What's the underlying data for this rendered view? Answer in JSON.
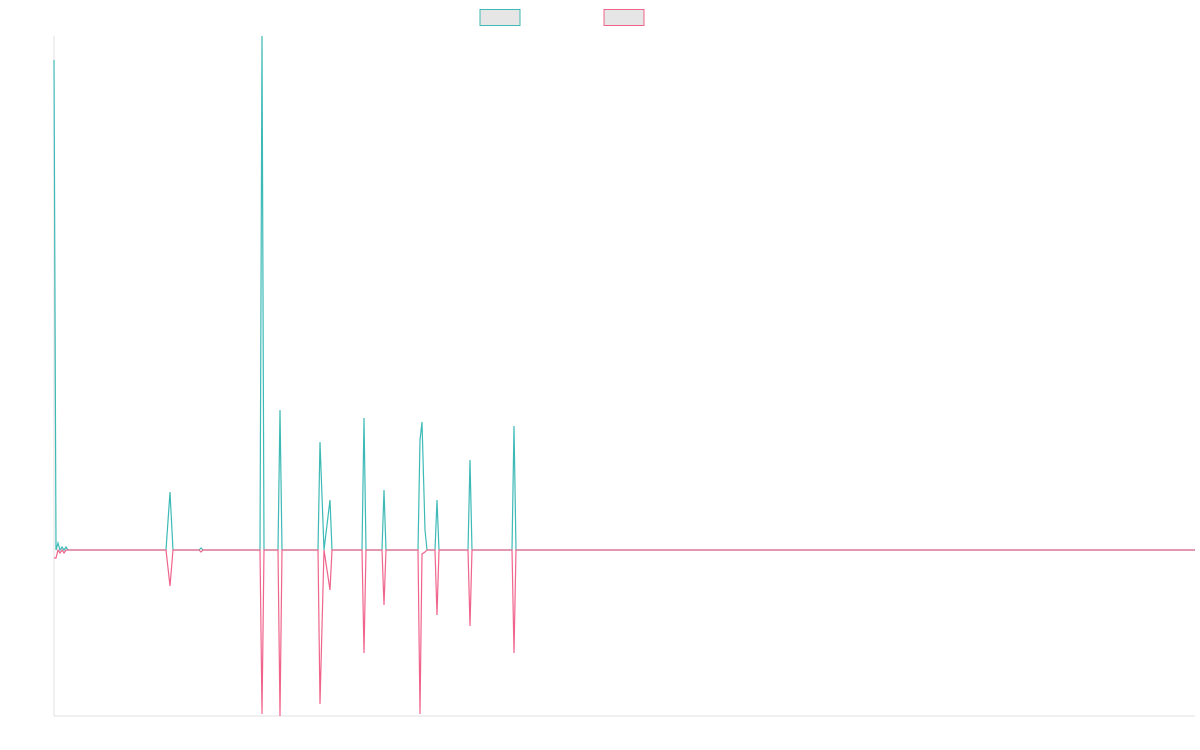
{
  "chart_data": {
    "type": "line",
    "x": [
      0,
      2,
      4,
      6,
      8,
      10,
      12,
      14,
      16,
      112,
      116,
      119,
      145,
      147,
      149,
      206,
      208,
      210,
      224,
      226,
      228,
      264,
      266,
      270,
      276,
      278,
      308,
      310,
      312,
      328,
      330,
      332,
      364,
      366,
      368,
      371,
      373,
      381,
      383,
      385,
      414,
      416,
      418,
      458,
      460,
      462,
      1141
    ],
    "series": [
      {
        "color": "#3dbab6",
        "values": [
          490,
          0,
          7,
          0,
          3,
          0,
          3,
          0,
          0,
          0,
          58,
          0,
          0,
          2,
          0,
          0,
          514,
          0,
          0,
          140,
          0,
          0,
          108,
          0,
          50,
          0,
          0,
          132,
          0,
          0,
          60,
          0,
          0,
          110,
          128,
          20,
          0,
          0,
          50,
          0,
          0,
          90,
          0,
          0,
          124,
          0,
          0
        ]
      },
      {
        "color": "#f0648c",
        "values": [
          -8,
          -8,
          0,
          -3,
          0,
          -3,
          0,
          0,
          0,
          0,
          -36,
          0,
          0,
          -2,
          0,
          0,
          -164,
          0,
          0,
          -166,
          0,
          0,
          -154,
          0,
          -40,
          0,
          0,
          -103,
          0,
          0,
          -55,
          0,
          0,
          -164,
          -4,
          -2,
          0,
          0,
          -65,
          0,
          0,
          -76,
          0,
          0,
          -103,
          0,
          0
        ]
      }
    ],
    "xlim": [
      0,
      1141
    ],
    "ylim": [
      -166,
      514
    ]
  }
}
